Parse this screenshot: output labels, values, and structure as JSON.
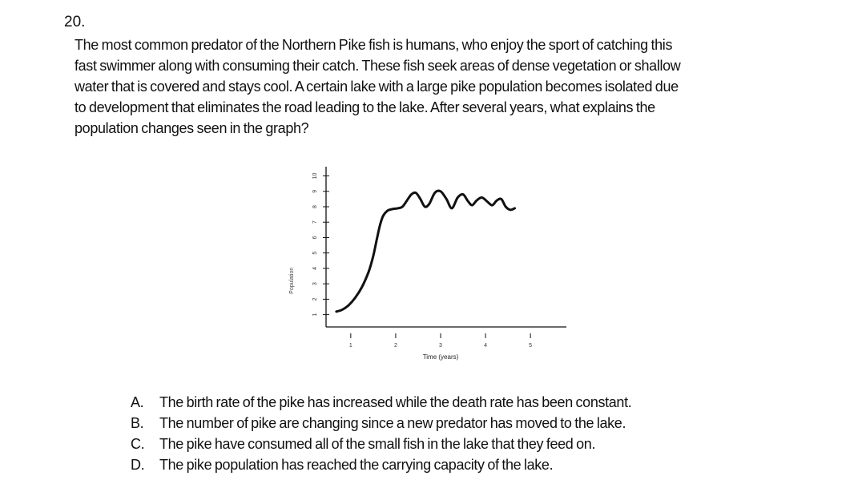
{
  "question": {
    "number": "20.",
    "lines": [
      "The most common predator of the Northern Pike fish is humans, who enjoy the sport of catching this",
      "fast swimmer along with consuming their catch.  These fish seek areas of dense vegetation or shallow",
      "water that is covered and stays cool.  A certain lake with a large pike population becomes isolated due",
      "to development that eliminates the road leading to the lake.  After several years, what explains the",
      "population changes seen in the graph?"
    ]
  },
  "chart_data": {
    "type": "line",
    "xlabel": "Time (years)",
    "ylabel": "Population",
    "x_ticks": [
      "1",
      "2",
      "3",
      "4",
      "5"
    ],
    "y_ticks": [
      "1",
      "2",
      "3",
      "4",
      "5",
      "6",
      "7",
      "8",
      "9",
      "10"
    ],
    "xlim": [
      0.45,
      5.8
    ],
    "ylim": [
      0.2,
      10.6
    ],
    "grid": false,
    "series": [
      {
        "x": [
          0.68,
          0.8,
          0.95,
          1.1,
          1.25,
          1.4,
          1.5,
          1.58,
          1.65,
          1.72,
          1.82,
          1.93,
          2.05,
          2.15,
          2.25,
          2.35,
          2.45,
          2.55,
          2.65,
          2.75,
          2.87,
          3.0,
          3.13,
          3.25,
          3.38,
          3.5,
          3.6,
          3.7,
          3.8,
          3.92,
          4.05,
          4.15,
          4.25,
          4.35,
          4.45,
          4.55,
          4.65
        ],
        "y": [
          1.2,
          1.3,
          1.6,
          2.1,
          2.8,
          3.8,
          4.8,
          5.9,
          6.8,
          7.4,
          7.75,
          7.85,
          7.9,
          8.0,
          8.4,
          8.8,
          8.9,
          8.5,
          8.0,
          8.2,
          8.9,
          9.0,
          8.5,
          7.9,
          8.6,
          8.8,
          8.4,
          8.1,
          8.4,
          8.6,
          8.3,
          8.1,
          8.4,
          8.5,
          8.0,
          7.8,
          7.9
        ]
      }
    ]
  },
  "answers": [
    {
      "letter": "A.",
      "text": "The birth rate of the pike has increased while the death rate has been constant."
    },
    {
      "letter": "B.",
      "text": "The number of pike are changing since a new predator has moved to the lake."
    },
    {
      "letter": "C.",
      "text": "The pike have consumed all of the small fish in the lake that they feed on."
    },
    {
      "letter": "D.",
      "text": "The pike population has reached the carrying capacity of the lake."
    }
  ]
}
